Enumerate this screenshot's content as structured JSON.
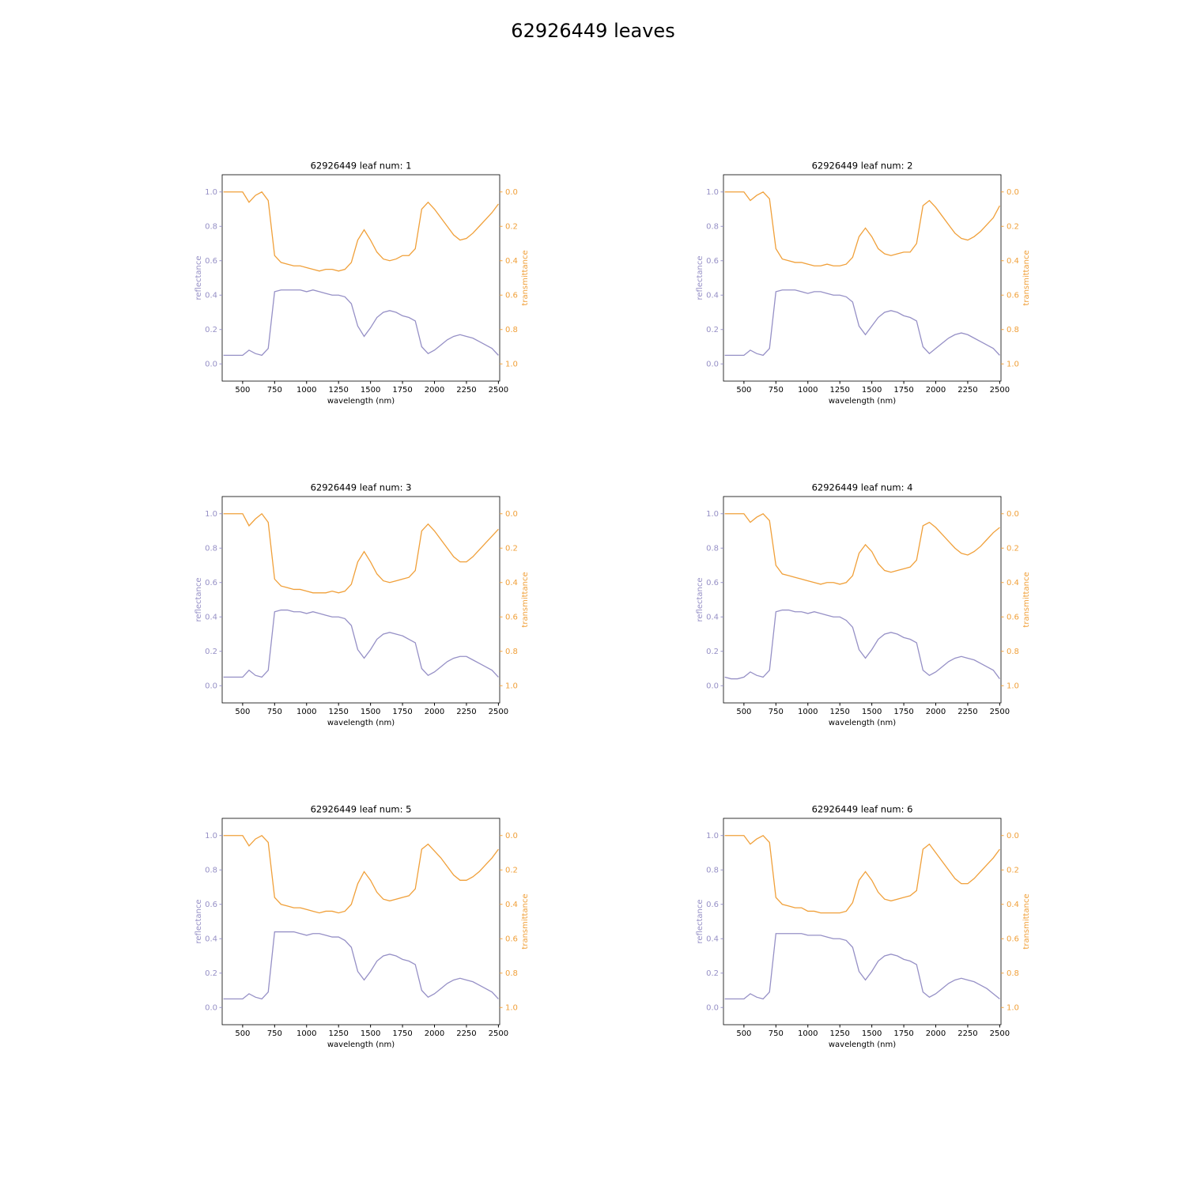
{
  "title": "62926449 leaves",
  "chart_data": [
    {
      "type": "line",
      "title": "62926449 leaf num: 1",
      "xlabel": "wavelength (nm)",
      "ylabel": "reflectance",
      "y2label": "transmittance",
      "x": [
        350,
        400,
        450,
        500,
        550,
        600,
        650,
        700,
        750,
        800,
        850,
        900,
        950,
        1000,
        1050,
        1100,
        1150,
        1200,
        1250,
        1300,
        1350,
        1400,
        1450,
        1500,
        1550,
        1600,
        1650,
        1700,
        1750,
        1800,
        1850,
        1900,
        1950,
        2000,
        2050,
        2100,
        2150,
        2200,
        2250,
        2300,
        2350,
        2400,
        2450,
        2500
      ],
      "series": [
        {
          "color": "#9690c6",
          "values": [
            0.05,
            0.05,
            0.05,
            0.05,
            0.08,
            0.06,
            0.05,
            0.09,
            0.42,
            0.43,
            0.43,
            0.43,
            0.43,
            0.42,
            0.43,
            0.42,
            0.41,
            0.4,
            0.4,
            0.39,
            0.35,
            0.22,
            0.16,
            0.21,
            0.27,
            0.3,
            0.31,
            0.3,
            0.28,
            0.27,
            0.25,
            0.1,
            0.06,
            0.08,
            0.11,
            0.14,
            0.16,
            0.17,
            0.16,
            0.15,
            0.13,
            0.11,
            0.09,
            0.05
          ]
        },
        {
          "color": "#f0a03a",
          "axis": "y2",
          "values": [
            0,
            0,
            0,
            0,
            0.06,
            0.02,
            0,
            0.05,
            0.37,
            0.41,
            0.42,
            0.43,
            0.43,
            0.44,
            0.45,
            0.46,
            0.45,
            0.45,
            0.46,
            0.45,
            0.41,
            0.28,
            0.22,
            0.28,
            0.35,
            0.39,
            0.4,
            0.39,
            0.37,
            0.37,
            0.33,
            0.1,
            0.06,
            0.1,
            0.15,
            0.2,
            0.25,
            0.28,
            0.27,
            0.24,
            0.2,
            0.16,
            0.12,
            0.07
          ]
        }
      ],
      "xlim": [
        340,
        2510
      ],
      "ylim": [
        -0.1,
        1.1
      ],
      "y2lim": [
        1.1,
        -0.1
      ],
      "xticks": [
        500,
        750,
        1000,
        1250,
        1500,
        1750,
        2000,
        2250,
        2500
      ],
      "yticks": [
        {
          "value": 0,
          "label": "0.0"
        },
        0.2,
        0.4,
        0.6,
        0.8,
        {
          "value": 1,
          "label": "1.0"
        }
      ],
      "y2ticks": [
        {
          "value": 0,
          "label": "0.0"
        },
        0.2,
        0.4,
        0.6,
        0.8,
        {
          "value": 1,
          "label": "1.0"
        }
      ]
    },
    {
      "type": "line",
      "title": "62926449 leaf num: 2",
      "xlabel": "wavelength (nm)",
      "ylabel": "reflectance",
      "y2label": "transmittance",
      "x": [
        350,
        400,
        450,
        500,
        550,
        600,
        650,
        700,
        750,
        800,
        850,
        900,
        950,
        1000,
        1050,
        1100,
        1150,
        1200,
        1250,
        1300,
        1350,
        1400,
        1450,
        1500,
        1550,
        1600,
        1650,
        1700,
        1750,
        1800,
        1850,
        1900,
        1950,
        2000,
        2050,
        2100,
        2150,
        2200,
        2250,
        2300,
        2350,
        2400,
        2450,
        2500
      ],
      "series": [
        {
          "color": "#9690c6",
          "values": [
            0.05,
            0.05,
            0.05,
            0.05,
            0.08,
            0.06,
            0.05,
            0.09,
            0.42,
            0.43,
            0.43,
            0.43,
            0.42,
            0.41,
            0.42,
            0.42,
            0.41,
            0.4,
            0.4,
            0.39,
            0.36,
            0.22,
            0.17,
            0.22,
            0.27,
            0.3,
            0.31,
            0.3,
            0.28,
            0.27,
            0.25,
            0.1,
            0.06,
            0.09,
            0.12,
            0.15,
            0.17,
            0.18,
            0.17,
            0.15,
            0.13,
            0.11,
            0.09,
            0.05
          ]
        },
        {
          "color": "#f0a03a",
          "axis": "y2",
          "values": [
            0,
            0,
            0,
            0,
            0.05,
            0.02,
            0,
            0.04,
            0.33,
            0.39,
            0.4,
            0.41,
            0.41,
            0.42,
            0.43,
            0.43,
            0.42,
            0.43,
            0.43,
            0.42,
            0.38,
            0.26,
            0.21,
            0.26,
            0.33,
            0.36,
            0.37,
            0.36,
            0.35,
            0.35,
            0.3,
            0.08,
            0.05,
            0.09,
            0.14,
            0.19,
            0.24,
            0.27,
            0.28,
            0.26,
            0.23,
            0.19,
            0.15,
            0.08
          ]
        }
      ],
      "xlim": [
        340,
        2510
      ],
      "ylim": [
        -0.1,
        1.1
      ],
      "y2lim": [
        1.1,
        -0.1
      ],
      "xticks": [
        500,
        750,
        1000,
        1250,
        1500,
        1750,
        2000,
        2250,
        2500
      ],
      "yticks": [
        {
          "value": 0,
          "label": "0.0"
        },
        0.2,
        0.4,
        0.6,
        0.8,
        {
          "value": 1,
          "label": "1.0"
        }
      ],
      "y2ticks": [
        {
          "value": 0,
          "label": "0.0"
        },
        0.2,
        0.4,
        0.6,
        0.8,
        {
          "value": 1,
          "label": "1.0"
        }
      ]
    },
    {
      "type": "line",
      "title": "62926449 leaf num: 3",
      "xlabel": "wavelength (nm)",
      "ylabel": "reflectance",
      "y2label": "transmittance",
      "x": [
        350,
        400,
        450,
        500,
        550,
        600,
        650,
        700,
        750,
        800,
        850,
        900,
        950,
        1000,
        1050,
        1100,
        1150,
        1200,
        1250,
        1300,
        1350,
        1400,
        1450,
        1500,
        1550,
        1600,
        1650,
        1700,
        1750,
        1800,
        1850,
        1900,
        1950,
        2000,
        2050,
        2100,
        2150,
        2200,
        2250,
        2300,
        2350,
        2400,
        2450,
        2500
      ],
      "series": [
        {
          "color": "#9690c6",
          "values": [
            0.05,
            0.05,
            0.05,
            0.05,
            0.09,
            0.06,
            0.05,
            0.09,
            0.43,
            0.44,
            0.44,
            0.43,
            0.43,
            0.42,
            0.43,
            0.42,
            0.41,
            0.4,
            0.4,
            0.39,
            0.35,
            0.21,
            0.16,
            0.21,
            0.27,
            0.3,
            0.31,
            0.3,
            0.29,
            0.27,
            0.25,
            0.1,
            0.06,
            0.08,
            0.11,
            0.14,
            0.16,
            0.17,
            0.17,
            0.15,
            0.13,
            0.11,
            0.09,
            0.05
          ]
        },
        {
          "color": "#f0a03a",
          "axis": "y2",
          "values": [
            0,
            0,
            0,
            0,
            0.07,
            0.03,
            0,
            0.05,
            0.38,
            0.42,
            0.43,
            0.44,
            0.44,
            0.45,
            0.46,
            0.46,
            0.46,
            0.45,
            0.46,
            0.45,
            0.41,
            0.28,
            0.22,
            0.28,
            0.35,
            0.39,
            0.4,
            0.39,
            0.38,
            0.37,
            0.33,
            0.1,
            0.06,
            0.1,
            0.15,
            0.2,
            0.25,
            0.28,
            0.28,
            0.25,
            0.21,
            0.17,
            0.13,
            0.09
          ]
        }
      ],
      "xlim": [
        340,
        2510
      ],
      "ylim": [
        -0.1,
        1.1
      ],
      "y2lim": [
        1.1,
        -0.1
      ],
      "xticks": [
        500,
        750,
        1000,
        1250,
        1500,
        1750,
        2000,
        2250,
        2500
      ],
      "yticks": [
        {
          "value": 0,
          "label": "0.0"
        },
        0.2,
        0.4,
        0.6,
        0.8,
        {
          "value": 1,
          "label": "1.0"
        }
      ],
      "y2ticks": [
        {
          "value": 0,
          "label": "0.0"
        },
        0.2,
        0.4,
        0.6,
        0.8,
        {
          "value": 1,
          "label": "1.0"
        }
      ]
    },
    {
      "type": "line",
      "title": "62926449 leaf num: 4",
      "xlabel": "wavelength (nm)",
      "ylabel": "reflectance",
      "y2label": "transmittance",
      "x": [
        350,
        400,
        450,
        500,
        550,
        600,
        650,
        700,
        750,
        800,
        850,
        900,
        950,
        1000,
        1050,
        1100,
        1150,
        1200,
        1250,
        1300,
        1350,
        1400,
        1450,
        1500,
        1550,
        1600,
        1650,
        1700,
        1750,
        1800,
        1850,
        1900,
        1950,
        2000,
        2050,
        2100,
        2150,
        2200,
        2250,
        2300,
        2350,
        2400,
        2450,
        2500
      ],
      "series": [
        {
          "color": "#9690c6",
          "values": [
            0.05,
            0.04,
            0.04,
            0.05,
            0.08,
            0.06,
            0.05,
            0.09,
            0.43,
            0.44,
            0.44,
            0.43,
            0.43,
            0.42,
            0.43,
            0.42,
            0.41,
            0.4,
            0.4,
            0.38,
            0.34,
            0.21,
            0.16,
            0.21,
            0.27,
            0.3,
            0.31,
            0.3,
            0.28,
            0.27,
            0.25,
            0.09,
            0.06,
            0.08,
            0.11,
            0.14,
            0.16,
            0.17,
            0.16,
            0.15,
            0.13,
            0.11,
            0.09,
            0.04
          ]
        },
        {
          "color": "#f0a03a",
          "axis": "y2",
          "values": [
            0,
            0,
            0,
            0,
            0.05,
            0.02,
            0,
            0.04,
            0.3,
            0.35,
            0.36,
            0.37,
            0.38,
            0.39,
            0.4,
            0.41,
            0.4,
            0.4,
            0.41,
            0.4,
            0.36,
            0.23,
            0.18,
            0.22,
            0.29,
            0.33,
            0.34,
            0.33,
            0.32,
            0.31,
            0.27,
            0.07,
            0.05,
            0.08,
            0.12,
            0.16,
            0.2,
            0.23,
            0.24,
            0.22,
            0.19,
            0.15,
            0.11,
            0.08
          ]
        }
      ],
      "xlim": [
        340,
        2510
      ],
      "ylim": [
        -0.1,
        1.1
      ],
      "y2lim": [
        1.1,
        -0.1
      ],
      "xticks": [
        500,
        750,
        1000,
        1250,
        1500,
        1750,
        2000,
        2250,
        2500
      ],
      "yticks": [
        {
          "value": 0,
          "label": "0.0"
        },
        0.2,
        0.4,
        0.6,
        0.8,
        {
          "value": 1,
          "label": "1.0"
        }
      ],
      "y2ticks": [
        {
          "value": 0,
          "label": "0.0"
        },
        0.2,
        0.4,
        0.6,
        0.8,
        {
          "value": 1,
          "label": "1.0"
        }
      ]
    },
    {
      "type": "line",
      "title": "62926449 leaf num: 5",
      "xlabel": "wavelength (nm)",
      "ylabel": "reflectance",
      "y2label": "transmittance",
      "x": [
        350,
        400,
        450,
        500,
        550,
        600,
        650,
        700,
        750,
        800,
        850,
        900,
        950,
        1000,
        1050,
        1100,
        1150,
        1200,
        1250,
        1300,
        1350,
        1400,
        1450,
        1500,
        1550,
        1600,
        1650,
        1700,
        1750,
        1800,
        1850,
        1900,
        1950,
        2000,
        2050,
        2100,
        2150,
        2200,
        2250,
        2300,
        2350,
        2400,
        2450,
        2500
      ],
      "series": [
        {
          "color": "#9690c6",
          "values": [
            0.05,
            0.05,
            0.05,
            0.05,
            0.08,
            0.06,
            0.05,
            0.09,
            0.44,
            0.44,
            0.44,
            0.44,
            0.43,
            0.42,
            0.43,
            0.43,
            0.42,
            0.41,
            0.41,
            0.39,
            0.35,
            0.21,
            0.16,
            0.21,
            0.27,
            0.3,
            0.31,
            0.3,
            0.28,
            0.27,
            0.25,
            0.1,
            0.06,
            0.08,
            0.11,
            0.14,
            0.16,
            0.17,
            0.16,
            0.15,
            0.13,
            0.11,
            0.09,
            0.05
          ]
        },
        {
          "color": "#f0a03a",
          "axis": "y2",
          "values": [
            0,
            0,
            0,
            0,
            0.06,
            0.02,
            0,
            0.04,
            0.36,
            0.4,
            0.41,
            0.42,
            0.42,
            0.43,
            0.44,
            0.45,
            0.44,
            0.44,
            0.45,
            0.44,
            0.4,
            0.28,
            0.21,
            0.26,
            0.33,
            0.37,
            0.38,
            0.37,
            0.36,
            0.35,
            0.31,
            0.08,
            0.05,
            0.09,
            0.13,
            0.18,
            0.23,
            0.26,
            0.26,
            0.24,
            0.21,
            0.17,
            0.13,
            0.08
          ]
        }
      ],
      "xlim": [
        340,
        2510
      ],
      "ylim": [
        -0.1,
        1.1
      ],
      "y2lim": [
        1.1,
        -0.1
      ],
      "xticks": [
        500,
        750,
        1000,
        1250,
        1500,
        1750,
        2000,
        2250,
        2500
      ],
      "yticks": [
        {
          "value": 0,
          "label": "0.0"
        },
        0.2,
        0.4,
        0.6,
        0.8,
        {
          "value": 1,
          "label": "1.0"
        }
      ],
      "y2ticks": [
        {
          "value": 0,
          "label": "0.0"
        },
        0.2,
        0.4,
        0.6,
        0.8,
        {
          "value": 1,
          "label": "1.0"
        }
      ]
    },
    {
      "type": "line",
      "title": "62926449 leaf num: 6",
      "xlabel": "wavelength (nm)",
      "ylabel": "reflectance",
      "y2label": "transmittance",
      "x": [
        350,
        400,
        450,
        500,
        550,
        600,
        650,
        700,
        750,
        800,
        850,
        900,
        950,
        1000,
        1050,
        1100,
        1150,
        1200,
        1250,
        1300,
        1350,
        1400,
        1450,
        1500,
        1550,
        1600,
        1650,
        1700,
        1750,
        1800,
        1850,
        1900,
        1950,
        2000,
        2050,
        2100,
        2150,
        2200,
        2250,
        2300,
        2350,
        2400,
        2450,
        2500
      ],
      "series": [
        {
          "color": "#9690c6",
          "values": [
            0.05,
            0.05,
            0.05,
            0.05,
            0.08,
            0.06,
            0.05,
            0.09,
            0.43,
            0.43,
            0.43,
            0.43,
            0.43,
            0.42,
            0.42,
            0.42,
            0.41,
            0.4,
            0.4,
            0.39,
            0.35,
            0.21,
            0.16,
            0.21,
            0.27,
            0.3,
            0.31,
            0.3,
            0.28,
            0.27,
            0.25,
            0.09,
            0.06,
            0.08,
            0.11,
            0.14,
            0.16,
            0.17,
            0.16,
            0.15,
            0.13,
            0.11,
            0.08,
            0.05
          ]
        },
        {
          "color": "#f0a03a",
          "axis": "y2",
          "values": [
            0,
            0,
            0,
            0,
            0.05,
            0.02,
            0,
            0.04,
            0.36,
            0.4,
            0.41,
            0.42,
            0.42,
            0.44,
            0.44,
            0.45,
            0.45,
            0.45,
            0.45,
            0.44,
            0.39,
            0.26,
            0.21,
            0.26,
            0.33,
            0.37,
            0.38,
            0.37,
            0.36,
            0.35,
            0.32,
            0.08,
            0.05,
            0.1,
            0.15,
            0.2,
            0.25,
            0.28,
            0.28,
            0.25,
            0.21,
            0.17,
            0.13,
            0.08
          ]
        }
      ],
      "xlim": [
        340,
        2510
      ],
      "ylim": [
        -0.1,
        1.1
      ],
      "y2lim": [
        1.1,
        -0.1
      ],
      "xticks": [
        500,
        750,
        1000,
        1250,
        1500,
        1750,
        2000,
        2250,
        2500
      ],
      "yticks": [
        {
          "value": 0,
          "label": "0.0"
        },
        0.2,
        0.4,
        0.6,
        0.8,
        {
          "value": 1,
          "label": "1.0"
        }
      ],
      "y2ticks": [
        {
          "value": 0,
          "label": "0.0"
        },
        0.2,
        0.4,
        0.6,
        0.8,
        {
          "value": 1,
          "label": "1.0"
        }
      ]
    }
  ]
}
